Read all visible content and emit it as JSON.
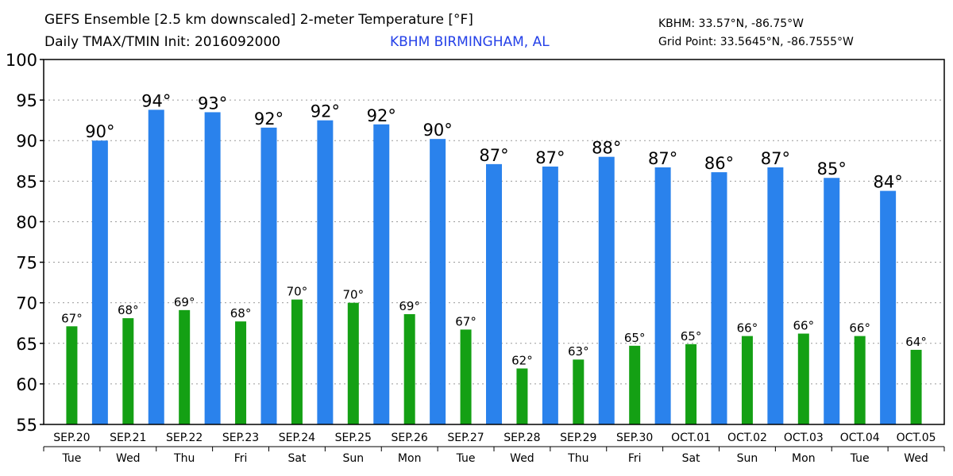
{
  "header": {
    "title_line1": "GEFS Ensemble [2.5 km downscaled] 2-meter Temperature [°F]",
    "title_line2": "Daily TMAX/TMIN Init: 2016092000",
    "station": "KBHM BIRMINGHAM, AL",
    "station_coord": "KBHM: 33.57°N, -86.75°W",
    "grid_coord": "Grid Point: 33.5645°N, -86.7555°W"
  },
  "chart_data": {
    "type": "bar",
    "ylim": [
      55,
      100
    ],
    "yticks": [
      55,
      60,
      65,
      70,
      75,
      80,
      85,
      90,
      95,
      100
    ],
    "grid": true,
    "categories": [
      "SEP.20",
      "SEP.21",
      "SEP.22",
      "SEP.23",
      "SEP.24",
      "SEP.25",
      "SEP.26",
      "SEP.27",
      "SEP.28",
      "SEP.29",
      "SEP.30",
      "OCT.01",
      "OCT.02",
      "OCT.03",
      "OCT.04",
      "OCT.05"
    ],
    "weekdays": [
      "Tue",
      "Wed",
      "Thu",
      "Fri",
      "Sat",
      "Sun",
      "Mon",
      "Tue",
      "Wed",
      "Thu",
      "Fri",
      "Sat",
      "Sun",
      "Mon",
      "Tue",
      "Wed"
    ],
    "colors": {
      "tmax": "#2a82ec",
      "tmin": "#14a014"
    },
    "tmax": {
      "values": [
        90.0,
        93.8,
        93.5,
        91.6,
        92.5,
        92.0,
        90.2,
        87.1,
        86.8,
        88.0,
        86.7,
        86.1,
        86.7,
        85.4,
        83.8
      ],
      "labels": [
        "90°",
        "94°",
        "93°",
        "92°",
        "92°",
        "92°",
        "90°",
        "87°",
        "87°",
        "88°",
        "87°",
        "86°",
        "87°",
        "85°",
        "84°"
      ]
    },
    "tmin": {
      "values": [
        67.1,
        68.1,
        69.1,
        67.7,
        70.4,
        70.0,
        68.6,
        66.7,
        61.9,
        63.0,
        64.7,
        64.9,
        65.9,
        66.2,
        65.9,
        64.2
      ],
      "labels": [
        "67°",
        "68°",
        "69°",
        "68°",
        "70°",
        "70°",
        "69°",
        "67°",
        "62°",
        "63°",
        "65°",
        "65°",
        "66°",
        "66°",
        "66°",
        "64°"
      ]
    }
  }
}
